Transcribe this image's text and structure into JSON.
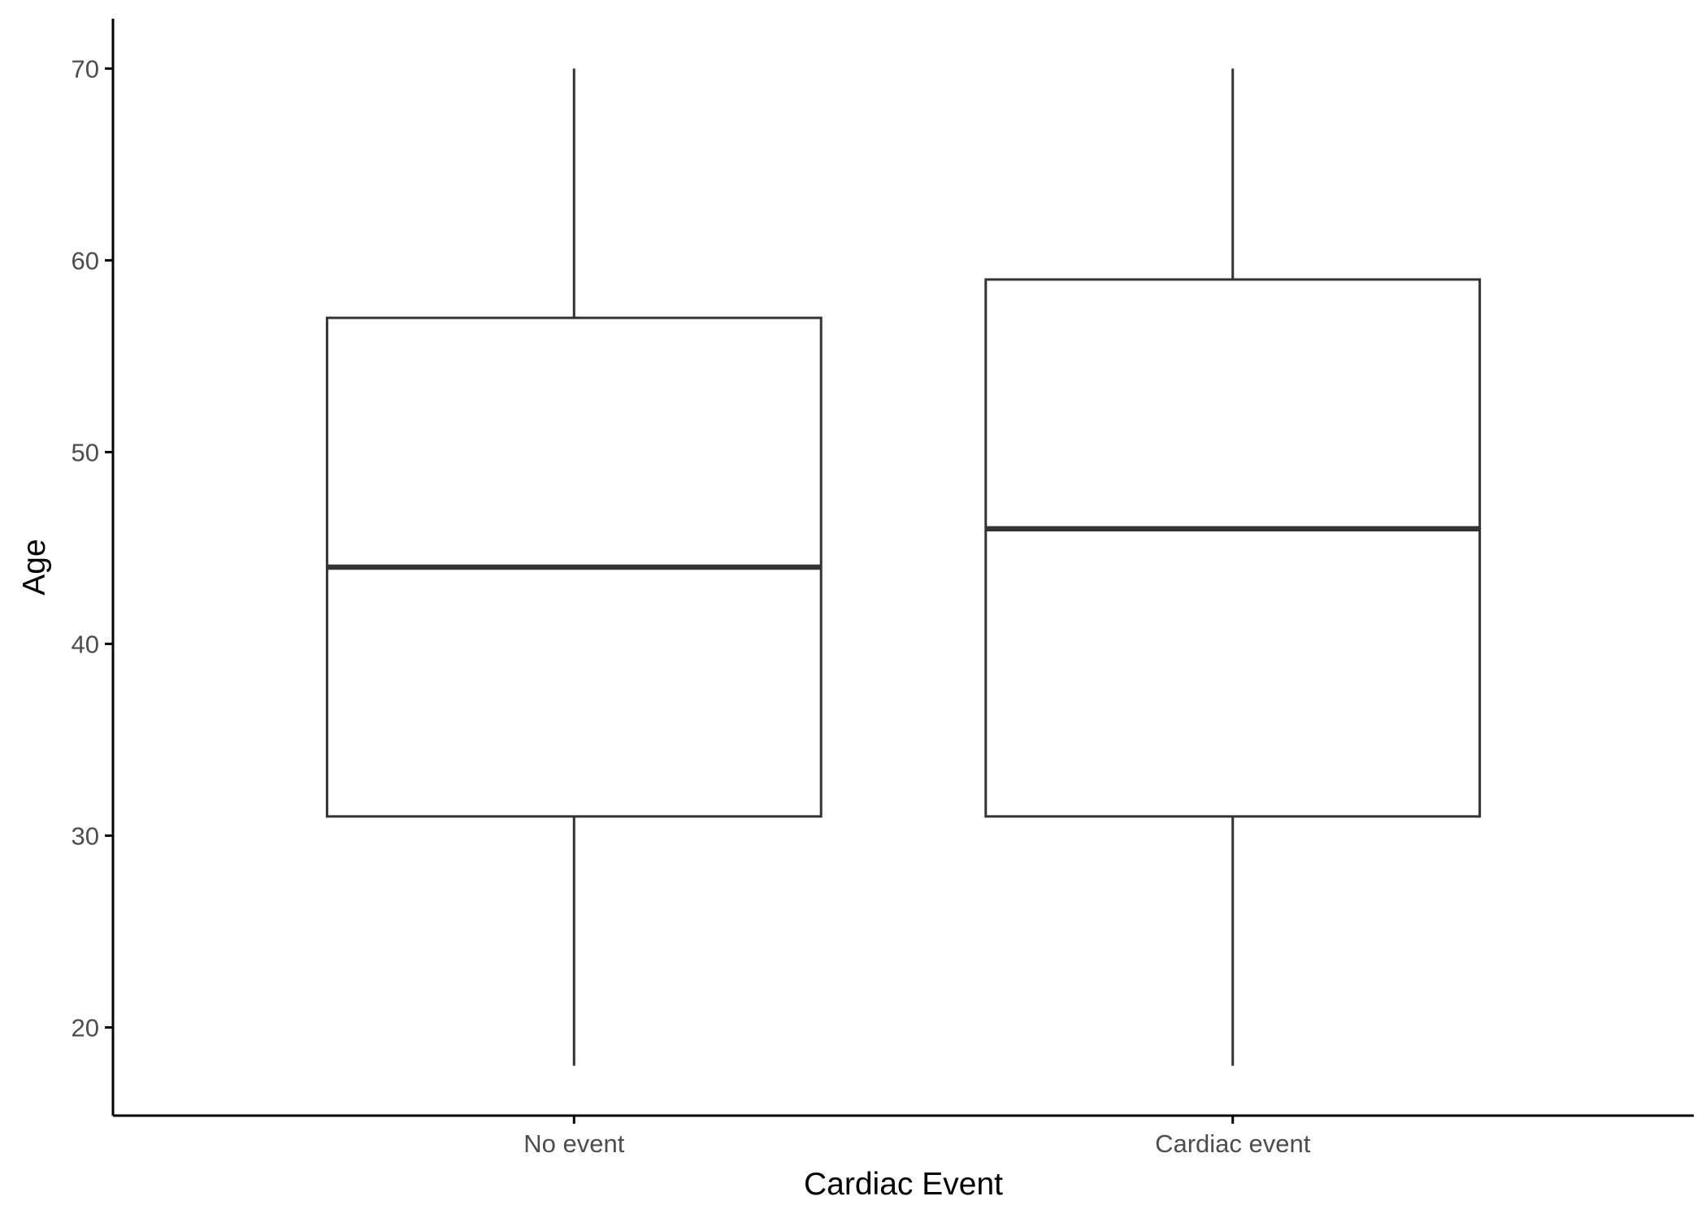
{
  "chart_data": {
    "type": "boxplot",
    "title": "",
    "xlabel": "Cardiac Event",
    "ylabel": "Age",
    "categories": [
      "No event",
      "Cardiac event"
    ],
    "boxes": [
      {
        "category": "No event",
        "min": 18,
        "q1": 31,
        "median": 44,
        "q3": 57,
        "max": 70
      },
      {
        "category": "Cardiac event",
        "min": 18,
        "q1": 31,
        "median": 46,
        "q3": 59,
        "max": 70
      }
    ],
    "y_ticks": [
      20,
      30,
      40,
      50,
      60,
      70
    ],
    "ylim": [
      15.4,
      72.6
    ],
    "grid": false,
    "legend": "none",
    "colors": {
      "box_line": "#333333",
      "axis": "#000000",
      "tick_text": "#4d4d4d",
      "fill": "#ffffff"
    }
  }
}
